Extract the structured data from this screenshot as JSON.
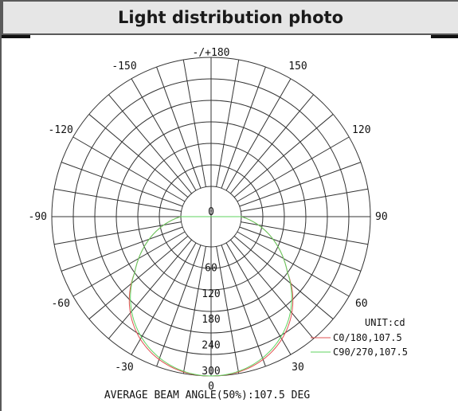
{
  "header": {
    "title": "Light distribution photo"
  },
  "chart_data": {
    "type": "polar",
    "title": "",
    "angular_tick_labels": [
      {
        "angle": 180,
        "label": "-/+180"
      },
      {
        "angle": 150,
        "label": "150"
      },
      {
        "angle": -150,
        "label": "-150"
      },
      {
        "angle": 120,
        "label": "120"
      },
      {
        "angle": -120,
        "label": "-120"
      },
      {
        "angle": 90,
        "label": "90"
      },
      {
        "angle": -90,
        "label": "-90"
      },
      {
        "angle": 60,
        "label": "60"
      },
      {
        "angle": -60,
        "label": "-60"
      },
      {
        "angle": 30,
        "label": "30"
      },
      {
        "angle": -30,
        "label": "-30"
      },
      {
        "angle": 0,
        "label": "0"
      }
    ],
    "radial_tick_labels": [
      "0",
      "60",
      "120",
      "180",
      "240",
      "300"
    ],
    "radial_values": [
      0,
      60,
      120,
      180,
      240,
      300
    ],
    "angular_grid_step_deg": 10,
    "unit_label": "UNIT:cd",
    "series": [
      {
        "name": "C0/180,107.5",
        "color": "#e05050",
        "beam_angle": 107.5,
        "peak_cd": 300
      },
      {
        "name": "C90/270,107.5",
        "color": "#5fd35f",
        "beam_angle": 107.5,
        "peak_cd": 300
      }
    ],
    "footer": "AVERAGE BEAM ANGLE(50%):107.5 DEG"
  }
}
